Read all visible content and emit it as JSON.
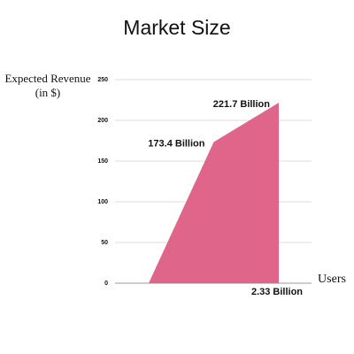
{
  "chart_data": {
    "type": "area",
    "title": "Market Size",
    "ylabel": [
      "Expected Revenue",
      "(in $)"
    ],
    "xlabel": "Users",
    "categories": [
      null,
      null,
      null
    ],
    "values": [
      0,
      173.4,
      221.7
    ],
    "value_labels": [
      null,
      "173.4 Billion",
      "221.7 Billion"
    ],
    "annotations": [
      "2.33  Billion"
    ],
    "color": "#e0658b",
    "ylim": [
      0,
      250
    ],
    "yticks": [
      0,
      50,
      100,
      150,
      200,
      250
    ],
    "grid": true
  }
}
